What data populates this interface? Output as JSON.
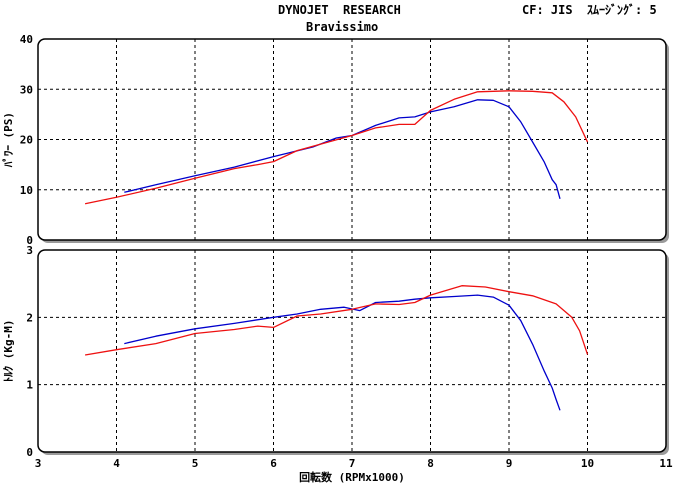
{
  "header": {
    "title": "DYNOJET  RESEARCH",
    "subtitle": "Bravissimo",
    "correction": "CF: JIS  ｽﾑｰｼﾞﾝｸﾞ: 5"
  },
  "chart_data": [
    {
      "type": "line",
      "ylabel": "ﾊﾟﾜｰ (PS)",
      "ylim": [
        0,
        40
      ],
      "yticks": [
        "0",
        "10",
        "20",
        "30",
        "40"
      ],
      "xlim": [
        3,
        11
      ],
      "grid": true,
      "colors": [
        "#0000cc",
        "#ee1111"
      ],
      "series": [
        {
          "color": "#0000cc",
          "points": [
            [
              4.1,
              9.5
            ],
            [
              4.5,
              11.0
            ],
            [
              5.0,
              12.8
            ],
            [
              5.5,
              14.5
            ],
            [
              6.0,
              16.6
            ],
            [
              6.5,
              18.5
            ],
            [
              6.8,
              20.3
            ],
            [
              7.0,
              20.8
            ],
            [
              7.3,
              22.8
            ],
            [
              7.6,
              24.3
            ],
            [
              7.8,
              24.5
            ],
            [
              8.0,
              25.5
            ],
            [
              8.3,
              26.5
            ],
            [
              8.6,
              27.9
            ],
            [
              8.8,
              27.8
            ],
            [
              9.0,
              26.5
            ],
            [
              9.15,
              23.5
            ],
            [
              9.3,
              19.5
            ],
            [
              9.45,
              15.5
            ],
            [
              9.55,
              12.0
            ],
            [
              9.6,
              11.0
            ],
            [
              9.65,
              8.2
            ]
          ]
        },
        {
          "color": "#ee1111",
          "points": [
            [
              3.6,
              7.2
            ],
            [
              4.0,
              8.5
            ],
            [
              4.5,
              10.3
            ],
            [
              5.0,
              12.3
            ],
            [
              5.5,
              14.2
            ],
            [
              5.8,
              15.0
            ],
            [
              6.0,
              15.6
            ],
            [
              6.3,
              17.8
            ],
            [
              6.7,
              19.5
            ],
            [
              7.0,
              20.8
            ],
            [
              7.3,
              22.3
            ],
            [
              7.6,
              23.0
            ],
            [
              7.8,
              23.0
            ],
            [
              8.0,
              25.8
            ],
            [
              8.3,
              28.0
            ],
            [
              8.6,
              29.5
            ],
            [
              8.8,
              29.6
            ],
            [
              9.0,
              29.7
            ],
            [
              9.3,
              29.6
            ],
            [
              9.55,
              29.3
            ],
            [
              9.7,
              27.5
            ],
            [
              9.85,
              24.5
            ],
            [
              10.0,
              19.5
            ]
          ]
        }
      ]
    },
    {
      "type": "line",
      "ylabel": "ﾄﾙｸ (Kg-M)",
      "ylim": [
        0,
        3
      ],
      "yticks": [
        "0",
        "1",
        "2",
        "3"
      ],
      "xlim": [
        3,
        11
      ],
      "xticks": [
        "3",
        "4",
        "5",
        "6",
        "7",
        "8",
        "9",
        "10",
        "11"
      ],
      "xlabel": "回転数 (RPMx1000)",
      "grid": true,
      "colors": [
        "#0000cc",
        "#ee1111"
      ],
      "series": [
        {
          "color": "#0000cc",
          "points": [
            [
              4.1,
              1.61
            ],
            [
              4.5,
              1.72
            ],
            [
              5.0,
              1.83
            ],
            [
              5.5,
              1.91
            ],
            [
              6.0,
              2.0
            ],
            [
              6.3,
              2.05
            ],
            [
              6.6,
              2.12
            ],
            [
              6.9,
              2.15
            ],
            [
              7.1,
              2.1
            ],
            [
              7.3,
              2.22
            ],
            [
              7.6,
              2.24
            ],
            [
              7.8,
              2.27
            ],
            [
              8.0,
              2.29
            ],
            [
              8.3,
              2.31
            ],
            [
              8.6,
              2.33
            ],
            [
              8.8,
              2.3
            ],
            [
              9.0,
              2.18
            ],
            [
              9.15,
              1.95
            ],
            [
              9.3,
              1.6
            ],
            [
              9.45,
              1.2
            ],
            [
              9.55,
              0.95
            ],
            [
              9.6,
              0.78
            ],
            [
              9.65,
              0.62
            ]
          ]
        },
        {
          "color": "#ee1111",
          "points": [
            [
              3.6,
              1.44
            ],
            [
              4.0,
              1.52
            ],
            [
              4.5,
              1.61
            ],
            [
              5.0,
              1.76
            ],
            [
              5.5,
              1.82
            ],
            [
              5.8,
              1.87
            ],
            [
              6.0,
              1.85
            ],
            [
              6.3,
              2.02
            ],
            [
              6.6,
              2.05
            ],
            [
              7.0,
              2.12
            ],
            [
              7.3,
              2.2
            ],
            [
              7.6,
              2.19
            ],
            [
              7.8,
              2.22
            ],
            [
              8.0,
              2.33
            ],
            [
              8.4,
              2.47
            ],
            [
              8.7,
              2.45
            ],
            [
              9.0,
              2.38
            ],
            [
              9.3,
              2.32
            ],
            [
              9.6,
              2.2
            ],
            [
              9.8,
              2.0
            ],
            [
              9.9,
              1.8
            ],
            [
              10.0,
              1.45
            ]
          ]
        }
      ]
    }
  ]
}
